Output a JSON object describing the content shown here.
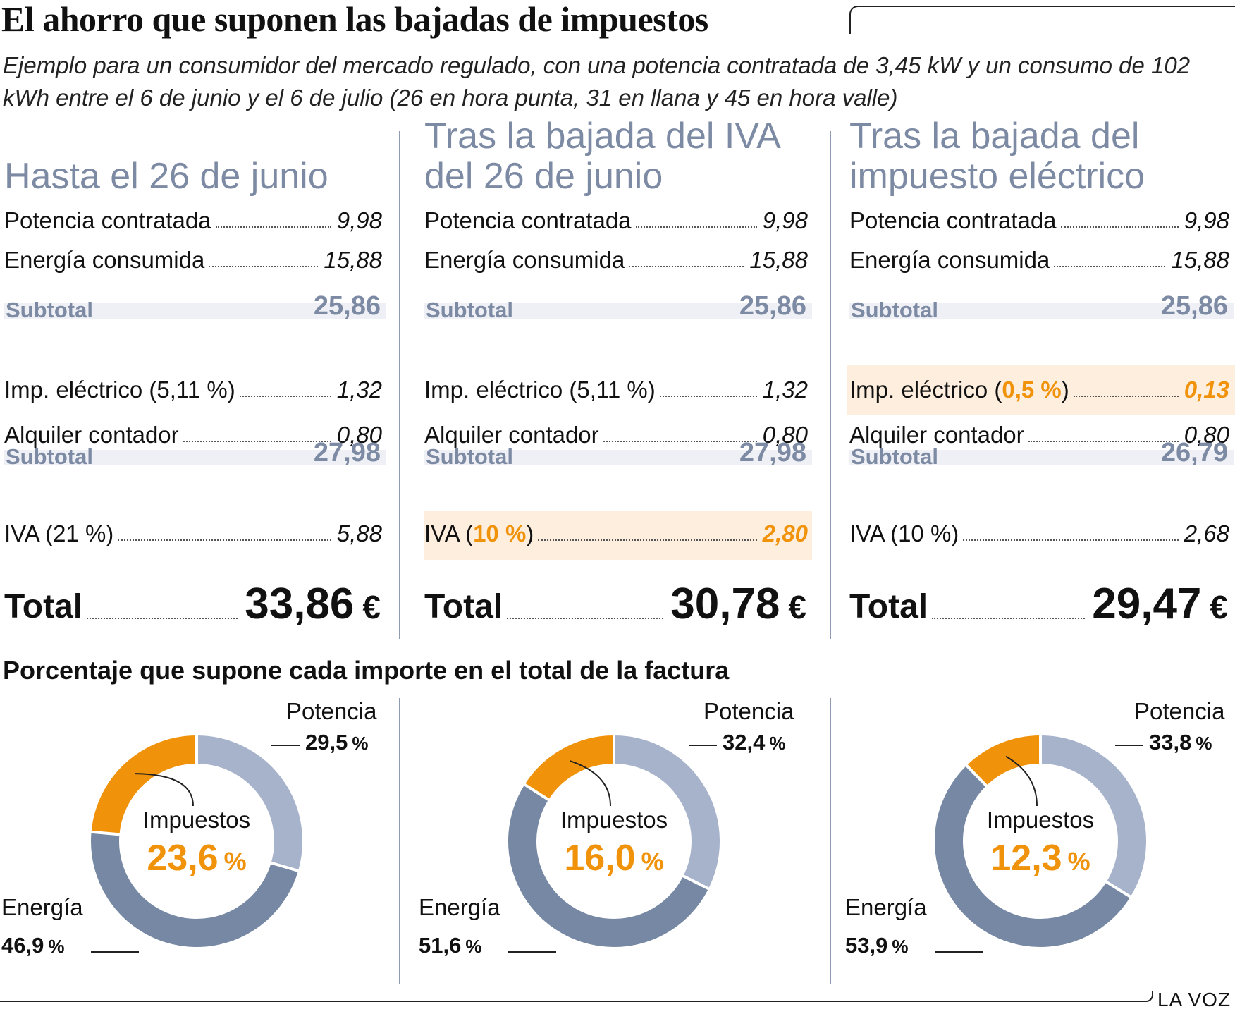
{
  "title": "El ahorro que suponen las bajadas de impuestos",
  "subtitle": "Ejemplo para un consumidor del mercado regulado, con una potencia contratada de 3,45 kW y un consumo de 102 kWh entre el 6 de junio y el 6 de julio (26 en hora punta, 31 en llana y 45 en hora valle)",
  "columns": [
    {
      "heading": "Hasta el 26 de junio",
      "potencia_label": "Potencia contratada",
      "potencia_value": "9,98",
      "energia_label": "Energía consumida",
      "energia_value": "15,88",
      "subtotal1_label": "Subtotal",
      "subtotal1_value": "25,86",
      "imp_label_pre": "Imp. eléctrico (",
      "imp_rate": "5,11 %",
      "imp_label_post": ")",
      "imp_value": "1,32",
      "alquiler_label": "Alquiler contador",
      "alquiler_value": "0,80",
      "subtotal2_label": "Subtotal",
      "subtotal2_value": "27,98",
      "iva_label_pre": "IVA (",
      "iva_rate": "21 %",
      "iva_label_post": ")",
      "iva_value": "5,88",
      "total_label": "Total",
      "total_value": "33,86",
      "currency": "€"
    },
    {
      "heading": "Tras la bajada del IVA\ndel 26 de junio",
      "potencia_label": "Potencia contratada",
      "potencia_value": "9,98",
      "energia_label": "Energía consumida",
      "energia_value": "15,88",
      "subtotal1_label": "Subtotal",
      "subtotal1_value": "25,86",
      "imp_label_pre": "Imp. eléctrico (",
      "imp_rate": "5,11 %",
      "imp_label_post": ")",
      "imp_value": "1,32",
      "alquiler_label": "Alquiler contador",
      "alquiler_value": "0,80",
      "subtotal2_label": "Subtotal",
      "subtotal2_value": "27,98",
      "iva_label_pre": "IVA (",
      "iva_rate": "10 %",
      "iva_label_post": ")",
      "iva_value": "2,80",
      "total_label": "Total",
      "total_value": "30,78",
      "currency": "€"
    },
    {
      "heading": "Tras la bajada del\nimpuesto eléctrico",
      "potencia_label": "Potencia contratada",
      "potencia_value": "9,98",
      "energia_label": "Energía consumida",
      "energia_value": "15,88",
      "subtotal1_label": "Subtotal",
      "subtotal1_value": "25,86",
      "imp_label_pre": "Imp. eléctrico (",
      "imp_rate": "0,5 %",
      "imp_label_post": ")",
      "imp_value": "0,13",
      "alquiler_label": "Alquiler contador",
      "alquiler_value": "0,80",
      "subtotal2_label": "Subtotal",
      "subtotal2_value": "26,79",
      "iva_label_pre": "IVA (",
      "iva_rate": "10 %",
      "iva_label_post": ")",
      "iva_value": "2,68",
      "total_label": "Total",
      "total_value": "29,47",
      "currency": "€"
    }
  ],
  "percent_title": "Porcentaje que supone cada importe en el total de la factura",
  "colors": {
    "potencia": "#a7b3cb",
    "energia": "#7688a3",
    "impuestos": "#f0920a",
    "heading": "#7d8aa3",
    "highlight": "#fdeedd"
  },
  "chart_data": [
    {
      "type": "pie",
      "categories": [
        "Potencia",
        "Energía",
        "Impuestos"
      ],
      "values": [
        29.5,
        46.9,
        23.6
      ],
      "labels": [
        "29,5",
        "46,9",
        "23,6"
      ],
      "unit": "%"
    },
    {
      "type": "pie",
      "categories": [
        "Potencia",
        "Energía",
        "Impuestos"
      ],
      "values": [
        32.4,
        51.6,
        16.0
      ],
      "labels": [
        "32,4",
        "51,6",
        "16,0"
      ],
      "unit": "%"
    },
    {
      "type": "pie",
      "categories": [
        "Potencia",
        "Energía",
        "Impuestos"
      ],
      "values": [
        33.8,
        53.9,
        12.3
      ],
      "labels": [
        "33,8",
        "53,9",
        "12,3"
      ],
      "unit": "%"
    }
  ],
  "brand": "LA VOZ"
}
